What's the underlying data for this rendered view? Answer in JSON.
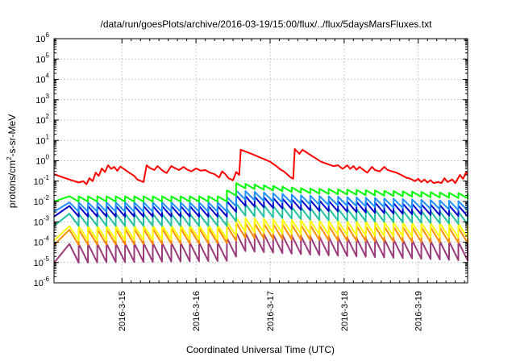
{
  "chart_data": {
    "type": "line",
    "title": "/data/run/goesPlots/archive/2016-03-19/15:00/flux/../flux/5daysMarsFluxes.txt",
    "xlabel": "Coordinated Universal Time (UTC)",
    "ylabel": {
      "prefix": "protons/cm",
      "exp": "2",
      "suffix": "-s-sr-MeV"
    },
    "yscale": "log",
    "ylim": [
      1e-06,
      1000000.0
    ],
    "y_ticks": [
      {
        "base": "10",
        "exp": "-6"
      },
      {
        "base": "10",
        "exp": "-5"
      },
      {
        "base": "10",
        "exp": "-4"
      },
      {
        "base": "10",
        "exp": "-3"
      },
      {
        "base": "10",
        "exp": "-2"
      },
      {
        "base": "10",
        "exp": "-1"
      },
      {
        "base": "10",
        "exp": "0"
      },
      {
        "base": "10",
        "exp": "1"
      },
      {
        "base": "10",
        "exp": "2"
      },
      {
        "base": "10",
        "exp": "3"
      },
      {
        "base": "10",
        "exp": "4"
      },
      {
        "base": "10",
        "exp": "5"
      },
      {
        "base": "10",
        "exp": "6"
      }
    ],
    "xlim": [
      "2016-03-14T02:00",
      "2016-03-19T16:00"
    ],
    "x_ticks": [
      "2016-3-15",
      "2016-3-16",
      "2016-3-17",
      "2016-3-18",
      "2016-3-19"
    ],
    "grid": true,
    "legend": "none",
    "series": [
      {
        "color": "#ff0000",
        "points": [
          [
            "2016-03-14T02:00",
            0.22
          ],
          [
            "2016-03-14T04:00",
            0.17
          ],
          [
            "2016-03-14T07:00",
            0.12
          ],
          [
            "2016-03-14T10:00",
            0.085
          ],
          [
            "2016-03-14T11:30",
            0.1
          ],
          [
            "2016-03-14T12:30",
            0.07
          ],
          [
            "2016-03-14T13:30",
            0.14
          ],
          [
            "2016-03-14T14:30",
            0.1
          ],
          [
            "2016-03-14T15:30",
            0.26
          ],
          [
            "2016-03-14T16:30",
            0.18
          ],
          [
            "2016-03-14T17:30",
            0.42
          ],
          [
            "2016-03-14T18:30",
            0.28
          ],
          [
            "2016-03-14T19:30",
            0.6
          ],
          [
            "2016-03-14T20:30",
            0.4
          ],
          [
            "2016-03-14T21:30",
            0.5
          ],
          [
            "2016-03-14T22:30",
            0.32
          ],
          [
            "2016-03-14T23:30",
            0.52
          ],
          [
            "2016-03-15T01:00",
            0.36
          ],
          [
            "2016-03-15T02:30",
            0.25
          ],
          [
            "2016-03-15T04:00",
            0.18
          ],
          [
            "2016-03-15T05:00",
            0.12
          ],
          [
            "2016-03-15T07:00",
            0.09
          ],
          [
            "2016-03-15T08:00",
            0.6
          ],
          [
            "2016-03-15T09:00",
            0.45
          ],
          [
            "2016-03-15T10:30",
            0.35
          ],
          [
            "2016-03-15T11:30",
            0.55
          ],
          [
            "2016-03-15T12:30",
            0.4
          ],
          [
            "2016-03-15T13:30",
            0.3
          ],
          [
            "2016-03-15T14:30",
            0.25
          ],
          [
            "2016-03-15T16:00",
            0.55
          ],
          [
            "2016-03-15T17:00",
            0.45
          ],
          [
            "2016-03-15T18:30",
            0.35
          ],
          [
            "2016-03-15T20:00",
            0.5
          ],
          [
            "2016-03-15T21:00",
            0.38
          ],
          [
            "2016-03-15T22:30",
            0.3
          ],
          [
            "2016-03-16T00:00",
            0.42
          ],
          [
            "2016-03-16T01:30",
            0.33
          ],
          [
            "2016-03-16T03:00",
            0.35
          ],
          [
            "2016-03-16T04:30",
            0.26
          ],
          [
            "2016-03-16T06:00",
            0.22
          ],
          [
            "2016-03-16T07:30",
            0.15
          ],
          [
            "2016-03-16T08:30",
            0.3
          ],
          [
            "2016-03-16T09:30",
            0.22
          ],
          [
            "2016-03-16T10:30",
            0.14
          ],
          [
            "2016-03-16T12:00",
            0.11
          ],
          [
            "2016-03-16T13:00",
            0.28
          ],
          [
            "2016-03-16T14:00",
            0.2
          ],
          [
            "2016-03-16T14:30",
            3.5
          ],
          [
            "2016-03-16T18:00",
            2.2
          ],
          [
            "2016-03-16T21:00",
            1.4
          ],
          [
            "2016-03-17T00:00",
            0.9
          ],
          [
            "2016-03-17T02:00",
            0.55
          ],
          [
            "2016-03-17T03:30",
            0.36
          ],
          [
            "2016-03-17T04:30",
            0.3
          ],
          [
            "2016-03-17T05:30",
            0.22
          ],
          [
            "2016-03-17T06:30",
            0.16
          ],
          [
            "2016-03-17T07:30",
            0.13
          ],
          [
            "2016-03-17T08:00",
            3.8
          ],
          [
            "2016-03-17T09:30",
            2.2
          ],
          [
            "2016-03-17T10:30",
            3.5
          ],
          [
            "2016-03-17T12:30",
            2.2
          ],
          [
            "2016-03-17T14:30",
            1.4
          ],
          [
            "2016-03-17T16:30",
            0.9
          ],
          [
            "2016-03-17T18:30",
            0.7
          ],
          [
            "2016-03-17T20:30",
            0.55
          ],
          [
            "2016-03-17T22:00",
            0.6
          ],
          [
            "2016-03-17T23:30",
            0.4
          ],
          [
            "2016-03-18T01:00",
            0.6
          ],
          [
            "2016-03-18T02:00",
            0.4
          ],
          [
            "2016-03-18T03:00",
            0.55
          ],
          [
            "2016-03-18T04:00",
            0.36
          ],
          [
            "2016-03-18T05:00",
            0.5
          ],
          [
            "2016-03-18T06:30",
            0.33
          ],
          [
            "2016-03-18T07:30",
            0.26
          ],
          [
            "2016-03-18T09:00",
            0.5
          ],
          [
            "2016-03-18T10:00",
            0.35
          ],
          [
            "2016-03-18T11:30",
            0.3
          ],
          [
            "2016-03-18T13:00",
            0.5
          ],
          [
            "2016-03-18T14:00",
            0.36
          ],
          [
            "2016-03-18T15:30",
            0.3
          ],
          [
            "2016-03-18T17:00",
            0.26
          ],
          [
            "2016-03-18T18:30",
            0.2
          ],
          [
            "2016-03-18T20:00",
            0.15
          ],
          [
            "2016-03-18T21:30",
            0.13
          ],
          [
            "2016-03-18T23:00",
            0.1
          ],
          [
            "2016-03-19T00:00",
            0.13
          ],
          [
            "2016-03-19T01:00",
            0.09
          ],
          [
            "2016-03-19T02:00",
            0.12
          ],
          [
            "2016-03-19T03:00",
            0.085
          ],
          [
            "2016-03-19T04:00",
            0.11
          ],
          [
            "2016-03-19T05:00",
            0.08
          ],
          [
            "2016-03-19T06:30",
            0.09
          ],
          [
            "2016-03-19T07:30",
            0.08
          ],
          [
            "2016-03-19T08:30",
            0.14
          ],
          [
            "2016-03-19T09:30",
            0.09
          ],
          [
            "2016-03-19T11:00",
            0.12
          ],
          [
            "2016-03-19T12:00",
            0.08
          ],
          [
            "2016-03-19T13:30",
            0.2
          ],
          [
            "2016-03-19T14:30",
            0.13
          ],
          [
            "2016-03-19T15:30",
            0.27
          ],
          [
            "2016-03-19T16:00",
            0.2
          ]
        ]
      },
      {
        "color": "#00ff00",
        "sawtooth": {
          "t0": "2016-03-14T07:00",
          "period_hours": 3,
          "top": [
            [
              0,
              0.018
            ],
            [
              0.4,
              0.018
            ],
            [
              0.44,
              0.08
            ],
            [
              0.6,
              0.045
            ],
            [
              1,
              0.025
            ]
          ],
          "drop_factor": 0.55
        }
      },
      {
        "color": "#1e90ff",
        "sawtooth": {
          "t0": "2016-03-14T07:00",
          "period_hours": 3,
          "top": [
            [
              0,
              0.009
            ],
            [
              0.4,
              0.009
            ],
            [
              0.44,
              0.035
            ],
            [
              0.6,
              0.02
            ],
            [
              1,
              0.01
            ]
          ],
          "drop_factor": 0.35
        }
      },
      {
        "color": "#0000cd",
        "sawtooth": {
          "t0": "2016-03-14T07:00",
          "period_hours": 3,
          "top": [
            [
              0,
              0.006
            ],
            [
              0.4,
              0.006
            ],
            [
              0.44,
              0.02
            ],
            [
              0.6,
              0.012
            ],
            [
              1,
              0.006
            ]
          ],
          "drop_factor": 0.3
        }
      },
      {
        "color": "#20c0a0",
        "sawtooth": {
          "t0": "2016-03-14T07:00",
          "period_hours": 3,
          "top": [
            [
              0,
              0.0025
            ],
            [
              0.4,
              0.0025
            ],
            [
              0.44,
              0.008
            ],
            [
              0.6,
              0.005
            ],
            [
              1,
              0.003
            ]
          ],
          "drop_factor": 0.25
        }
      },
      {
        "color": "#ffff00",
        "sawtooth": {
          "t0": "2016-03-14T07:00",
          "period_hours": 3,
          "top": [
            [
              0,
              0.0006
            ],
            [
              0.4,
              0.0007
            ],
            [
              0.44,
              0.0016
            ],
            [
              0.6,
              0.0012
            ],
            [
              1,
              0.0008
            ]
          ],
          "drop_factor": 0.2
        }
      },
      {
        "color": "#ff8c00",
        "sawtooth": {
          "t0": "2016-03-14T07:00",
          "period_hours": 3,
          "top": [
            [
              0,
              0.0004
            ],
            [
              0.4,
              0.0005
            ],
            [
              0.44,
              0.0009
            ],
            [
              0.6,
              0.0007
            ],
            [
              1,
              0.0005
            ]
          ],
          "drop_factor": 0.18
        }
      },
      {
        "color": "#9b3a7a",
        "sawtooth": {
          "t0": "2016-03-14T07:00",
          "period_hours": 3,
          "top": [
            [
              0,
              8e-05
            ],
            [
              0.4,
              0.0001
            ],
            [
              0.44,
              0.0003
            ],
            [
              0.6,
              0.0002
            ],
            [
              1,
              0.0001
            ]
          ],
          "drop_factor": 0.12
        }
      }
    ]
  }
}
